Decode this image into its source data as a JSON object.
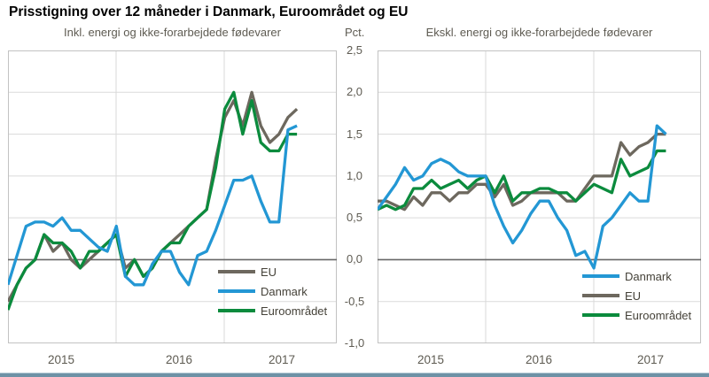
{
  "page": {
    "title": "Prisstigning over 12 måneder i Danmark, Euroområdet og EU"
  },
  "y_axis": {
    "unit": "Pct.",
    "ticks": [
      "2,5",
      "2,0",
      "1,5",
      "1,0",
      "0,5",
      "0,0",
      "-0,5",
      "-1,0"
    ],
    "tick_values": [
      2.5,
      2.0,
      1.5,
      1.0,
      0.5,
      0.0,
      -0.5,
      -1.0
    ],
    "min": -1.0,
    "max": 2.5
  },
  "colors": {
    "danmark": "#2397D4",
    "eu": "#6D685E",
    "euroomraadet": "#0B8B3D",
    "grid": "#DADADA",
    "zero_line": "#666666",
    "border": "#C2C2C2",
    "text": "#5E5B52",
    "bottom_bar": "#6E92A6",
    "bottom_bar_top": "#B3C8D4"
  },
  "chart_data": [
    {
      "type": "line",
      "title": "Inkl. energi og ikke-forarbejdede fødevarer",
      "ylabel": "Pct.",
      "ylim": [
        -1.0,
        2.5
      ],
      "grid": true,
      "legend_position": "lower-right",
      "legend_order": [
        "EU",
        "Danmark",
        "Euroområdet"
      ],
      "x_years": [
        "2015",
        "2016",
        "2017"
      ],
      "x": [
        "2015-01",
        "2015-02",
        "2015-03",
        "2015-04",
        "2015-05",
        "2015-06",
        "2015-07",
        "2015-08",
        "2015-09",
        "2015-10",
        "2015-11",
        "2015-12",
        "2016-01",
        "2016-02",
        "2016-03",
        "2016-04",
        "2016-05",
        "2016-06",
        "2016-07",
        "2016-08",
        "2016-09",
        "2016-10",
        "2016-11",
        "2016-12",
        "2017-01",
        "2017-02",
        "2017-03",
        "2017-04",
        "2017-05",
        "2017-06",
        "2017-07",
        "2017-08",
        "2017-09"
      ],
      "series": [
        {
          "name": "EU",
          "color_key": "eu",
          "values": [
            -0.5,
            -0.3,
            -0.1,
            0.0,
            0.3,
            0.1,
            0.2,
            0.0,
            -0.1,
            0.0,
            0.1,
            0.2,
            0.3,
            -0.1,
            0.0,
            -0.2,
            -0.1,
            0.1,
            0.2,
            0.3,
            0.4,
            0.5,
            0.6,
            1.2,
            1.7,
            1.9,
            1.6,
            2.0,
            1.6,
            1.4,
            1.5,
            1.7,
            1.8
          ]
        },
        {
          "name": "Danmark",
          "color_key": "danmark",
          "values": [
            -0.3,
            0.05,
            0.4,
            0.45,
            0.45,
            0.4,
            0.5,
            0.35,
            0.35,
            0.25,
            0.15,
            0.1,
            0.4,
            -0.2,
            -0.3,
            -0.3,
            -0.05,
            0.1,
            0.1,
            -0.15,
            -0.3,
            0.05,
            0.1,
            0.35,
            0.65,
            0.95,
            0.95,
            1.0,
            0.7,
            0.45,
            0.45,
            1.55,
            1.6
          ]
        },
        {
          "name": "Euroområdet",
          "color_key": "euroomraadet",
          "values": [
            -0.6,
            -0.3,
            -0.1,
            0.0,
            0.3,
            0.2,
            0.2,
            0.1,
            -0.1,
            0.1,
            0.1,
            0.2,
            0.3,
            -0.2,
            0.0,
            -0.2,
            -0.1,
            0.1,
            0.2,
            0.2,
            0.4,
            0.5,
            0.6,
            1.1,
            1.8,
            2.0,
            1.5,
            1.9,
            1.4,
            1.3,
            1.3,
            1.5,
            1.5
          ]
        }
      ]
    },
    {
      "type": "line",
      "title": "Ekskl. energi og ikke-forarbejdede fødevarer",
      "ylabel": "Pct.",
      "ylim": [
        -1.0,
        2.5
      ],
      "grid": true,
      "legend_position": "lower-right",
      "legend_order": [
        "Danmark",
        "EU",
        "Euroområdet"
      ],
      "x_years": [
        "2015",
        "2016",
        "2017"
      ],
      "x": [
        "2015-01",
        "2015-02",
        "2015-03",
        "2015-04",
        "2015-05",
        "2015-06",
        "2015-07",
        "2015-08",
        "2015-09",
        "2015-10",
        "2015-11",
        "2015-12",
        "2016-01",
        "2016-02",
        "2016-03",
        "2016-04",
        "2016-05",
        "2016-06",
        "2016-07",
        "2016-08",
        "2016-09",
        "2016-10",
        "2016-11",
        "2016-12",
        "2017-01",
        "2017-02",
        "2017-03",
        "2017-04",
        "2017-05",
        "2017-06",
        "2017-07",
        "2017-08",
        "2017-09"
      ],
      "series": [
        {
          "name": "EU",
          "color_key": "eu",
          "values": [
            0.7,
            0.7,
            0.65,
            0.6,
            0.75,
            0.65,
            0.8,
            0.8,
            0.7,
            0.8,
            0.8,
            0.9,
            0.9,
            0.75,
            0.9,
            0.65,
            0.7,
            0.8,
            0.8,
            0.8,
            0.8,
            0.7,
            0.7,
            0.85,
            1.0,
            1.0,
            1.0,
            1.4,
            1.25,
            1.35,
            1.4,
            1.5,
            1.5
          ]
        },
        {
          "name": "Danmark",
          "color_key": "danmark",
          "values": [
            0.6,
            0.75,
            0.9,
            1.1,
            0.95,
            1.0,
            1.15,
            1.2,
            1.15,
            1.05,
            1.0,
            1.0,
            1.0,
            0.65,
            0.4,
            0.2,
            0.35,
            0.55,
            0.7,
            0.7,
            0.5,
            0.35,
            0.05,
            0.1,
            -0.1,
            0.4,
            0.5,
            0.65,
            0.8,
            0.7,
            0.7,
            1.6,
            1.5
          ]
        },
        {
          "name": "Euroområdet",
          "color_key": "euroomraadet",
          "values": [
            0.6,
            0.65,
            0.6,
            0.65,
            0.85,
            0.85,
            0.95,
            0.85,
            0.9,
            0.95,
            0.85,
            0.95,
            1.0,
            0.8,
            1.0,
            0.7,
            0.8,
            0.8,
            0.85,
            0.85,
            0.8,
            0.8,
            0.7,
            0.8,
            0.9,
            0.85,
            0.8,
            1.2,
            1.0,
            1.05,
            1.1,
            1.3,
            1.3
          ]
        }
      ]
    }
  ]
}
